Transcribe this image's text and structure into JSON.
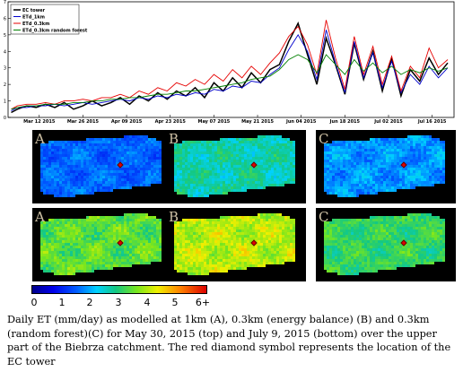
{
  "chart_data": {
    "type": "line",
    "title": "",
    "xlabel": "",
    "ylabel": "",
    "ylim": [
      0,
      7
    ],
    "yticks": [
      0,
      1,
      2,
      3,
      4,
      5,
      6,
      7
    ],
    "xlim": [
      "2015-03-02",
      "2015-07-23"
    ],
    "xticks": [
      "Mar 12 2015",
      "Mar 26 2015",
      "Apr 09 2015",
      "Apr 23 2015",
      "May 07 2015",
      "May 21 2015",
      "Jun 04 2015",
      "Jun 18 2015",
      "Jul 02 2015",
      "Jul 16 2015"
    ],
    "legend_position": "top-left",
    "x": [
      "2015-03-03",
      "2015-03-05",
      "2015-03-08",
      "2015-03-11",
      "2015-03-14",
      "2015-03-17",
      "2015-03-20",
      "2015-03-23",
      "2015-03-26",
      "2015-03-29",
      "2015-04-01",
      "2015-04-04",
      "2015-04-07",
      "2015-04-10",
      "2015-04-13",
      "2015-04-16",
      "2015-04-19",
      "2015-04-22",
      "2015-04-25",
      "2015-04-28",
      "2015-05-01",
      "2015-05-04",
      "2015-05-07",
      "2015-05-10",
      "2015-05-13",
      "2015-05-16",
      "2015-05-19",
      "2015-05-22",
      "2015-05-25",
      "2015-05-28",
      "2015-05-31",
      "2015-06-03",
      "2015-06-06",
      "2015-06-09",
      "2015-06-12",
      "2015-06-15",
      "2015-06-18",
      "2015-06-21",
      "2015-06-24",
      "2015-06-27",
      "2015-06-30",
      "2015-07-03",
      "2015-07-06",
      "2015-07-09",
      "2015-07-12",
      "2015-07-15",
      "2015-07-18",
      "2015-07-21"
    ],
    "series": [
      {
        "name": "EC tower",
        "color": "#000000",
        "values": [
          0.3,
          0.5,
          0.7,
          0.6,
          0.8,
          0.6,
          0.9,
          0.5,
          0.7,
          1.0,
          0.7,
          0.9,
          1.2,
          0.8,
          1.3,
          1.0,
          1.5,
          1.1,
          1.6,
          1.3,
          1.8,
          1.2,
          2.1,
          1.6,
          2.4,
          1.8,
          2.7,
          2.1,
          2.9,
          3.2,
          4.6,
          5.7,
          3.8,
          2.0,
          4.8,
          3.2,
          1.4,
          4.5,
          2.3,
          4.0,
          1.6,
          3.6,
          1.3,
          2.9,
          2.2,
          3.6,
          2.6,
          3.3
        ]
      },
      {
        "name": "ETd_1km",
        "color": "#0000cc",
        "values": [
          0.4,
          0.6,
          0.6,
          0.7,
          0.7,
          0.8,
          0.7,
          0.8,
          0.9,
          0.8,
          0.9,
          1.0,
          1.1,
          1.0,
          1.2,
          1.1,
          1.3,
          1.2,
          1.4,
          1.3,
          1.5,
          1.4,
          1.7,
          1.6,
          1.9,
          1.8,
          2.2,
          2.1,
          2.6,
          3.0,
          4.1,
          5.0,
          4.0,
          2.3,
          5.3,
          3.3,
          1.5,
          4.6,
          2.4,
          3.9,
          1.8,
          3.4,
          1.5,
          2.6,
          2.0,
          3.1,
          2.4,
          3.0
        ]
      },
      {
        "name": "ETd_0.3km",
        "color": "#e60000",
        "values": [
          0.5,
          0.7,
          0.8,
          0.8,
          0.9,
          0.8,
          1.0,
          1.0,
          1.1,
          1.0,
          1.2,
          1.2,
          1.4,
          1.2,
          1.6,
          1.4,
          1.8,
          1.6,
          2.1,
          1.9,
          2.3,
          2.0,
          2.6,
          2.2,
          2.9,
          2.4,
          3.1,
          2.6,
          3.3,
          3.9,
          4.9,
          5.5,
          4.4,
          2.6,
          5.9,
          3.6,
          1.7,
          4.9,
          2.6,
          4.3,
          2.0,
          3.7,
          1.6,
          3.1,
          2.4,
          4.2,
          3.0,
          3.5
        ]
      },
      {
        "name": "ETd_0.3km random forest",
        "color": "#008000",
        "values": [
          0.5,
          0.6,
          0.7,
          0.7,
          0.8,
          0.8,
          0.8,
          0.9,
          0.9,
          1.0,
          1.0,
          1.1,
          1.1,
          1.2,
          1.2,
          1.3,
          1.4,
          1.4,
          1.5,
          1.6,
          1.6,
          1.7,
          1.8,
          1.9,
          2.0,
          2.1,
          2.3,
          2.4,
          2.5,
          2.9,
          3.5,
          3.8,
          3.5,
          2.7,
          3.8,
          3.2,
          2.6,
          3.5,
          2.8,
          3.3,
          2.7,
          3.1,
          2.6,
          2.9,
          2.7,
          3.0,
          2.8,
          3.0
        ]
      }
    ]
  },
  "maps": {
    "top_row": [
      {
        "letter": "A"
      },
      {
        "letter": "B"
      },
      {
        "letter": "C"
      }
    ],
    "bottom_row": [
      {
        "letter": "A"
      },
      {
        "letter": "B"
      },
      {
        "letter": "C"
      }
    ]
  },
  "colorbar": {
    "ticks": [
      "0",
      "1",
      "2",
      "3",
      "4",
      "5",
      "6+"
    ],
    "range": [
      0,
      6
    ]
  },
  "caption": "Daily ET (mm/day) as modelled at 1km (A), 0.3km (energy balance) (B) and 0.3km (random forest)(C) for May 30, 2015 (top) and July 9, 2015 (bottom) over the upper part of the Biebrza catchment. The red diamond symbol represents the location of the EC tower"
}
